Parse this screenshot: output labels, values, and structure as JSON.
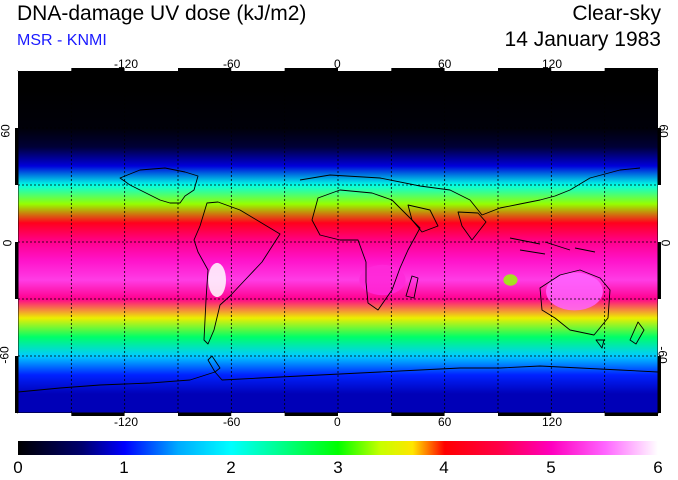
{
  "header": {
    "title": "DNA-damage UV dose (kJ/m2)",
    "subtitle": "MSR - KNMI",
    "condition": "Clear-sky",
    "date": "14 January 1983"
  },
  "colors": {
    "subtitle": "#1a1aff",
    "frame": "#000000",
    "grid": "#000000",
    "coast": "#000000"
  },
  "map": {
    "projection": "equirectangular",
    "lon_range": [
      -180,
      180
    ],
    "lat_range": [
      -90,
      90
    ],
    "lon_ticks": [
      "-120",
      "-60",
      "0",
      "60",
      "120"
    ],
    "lat_ticks": [
      "60",
      "0",
      "-60"
    ],
    "grid_lon": [
      -150,
      -120,
      -90,
      -60,
      -30,
      0,
      30,
      60,
      90,
      120,
      150
    ],
    "grid_lat": [
      -60,
      -30,
      0,
      30,
      60
    ]
  },
  "colorbar": {
    "min": 0,
    "max": 6,
    "labels": [
      "0",
      "1",
      "2",
      "3",
      "4",
      "5",
      "6"
    ]
  },
  "chart_data": {
    "type": "heatmap",
    "title": "DNA-damage UV dose (kJ/m2)",
    "variable": "Clear-sky DNA-damage UV dose",
    "unit": "kJ/m2",
    "date": "14 January 1983",
    "value_range": [
      0,
      6
    ],
    "zonal_profile": [
      {
        "lat": 80,
        "value": 0.0
      },
      {
        "lat": 60,
        "value": 0.05
      },
      {
        "lat": 50,
        "value": 0.3
      },
      {
        "lat": 40,
        "value": 0.9
      },
      {
        "lat": 30,
        "value": 2.1
      },
      {
        "lat": 20,
        "value": 3.3
      },
      {
        "lat": 10,
        "value": 4.2
      },
      {
        "lat": 0,
        "value": 4.8
      },
      {
        "lat": -10,
        "value": 5.1
      },
      {
        "lat": -20,
        "value": 5.3
      },
      {
        "lat": -30,
        "value": 4.8
      },
      {
        "lat": -40,
        "value": 3.6
      },
      {
        "lat": -50,
        "value": 2.6
      },
      {
        "lat": -60,
        "value": 1.7
      },
      {
        "lat": -70,
        "value": 1.1
      },
      {
        "lat": -80,
        "value": 0.8
      }
    ],
    "features": [
      {
        "region": "Andes (Altiplano)",
        "value": 6.0
      },
      {
        "region": "Australia",
        "value": 5.5
      },
      {
        "region": "Southern Africa",
        "value": 5.2
      },
      {
        "region": "Indian Ocean near 95E 20S",
        "value": 3.3
      }
    ]
  }
}
